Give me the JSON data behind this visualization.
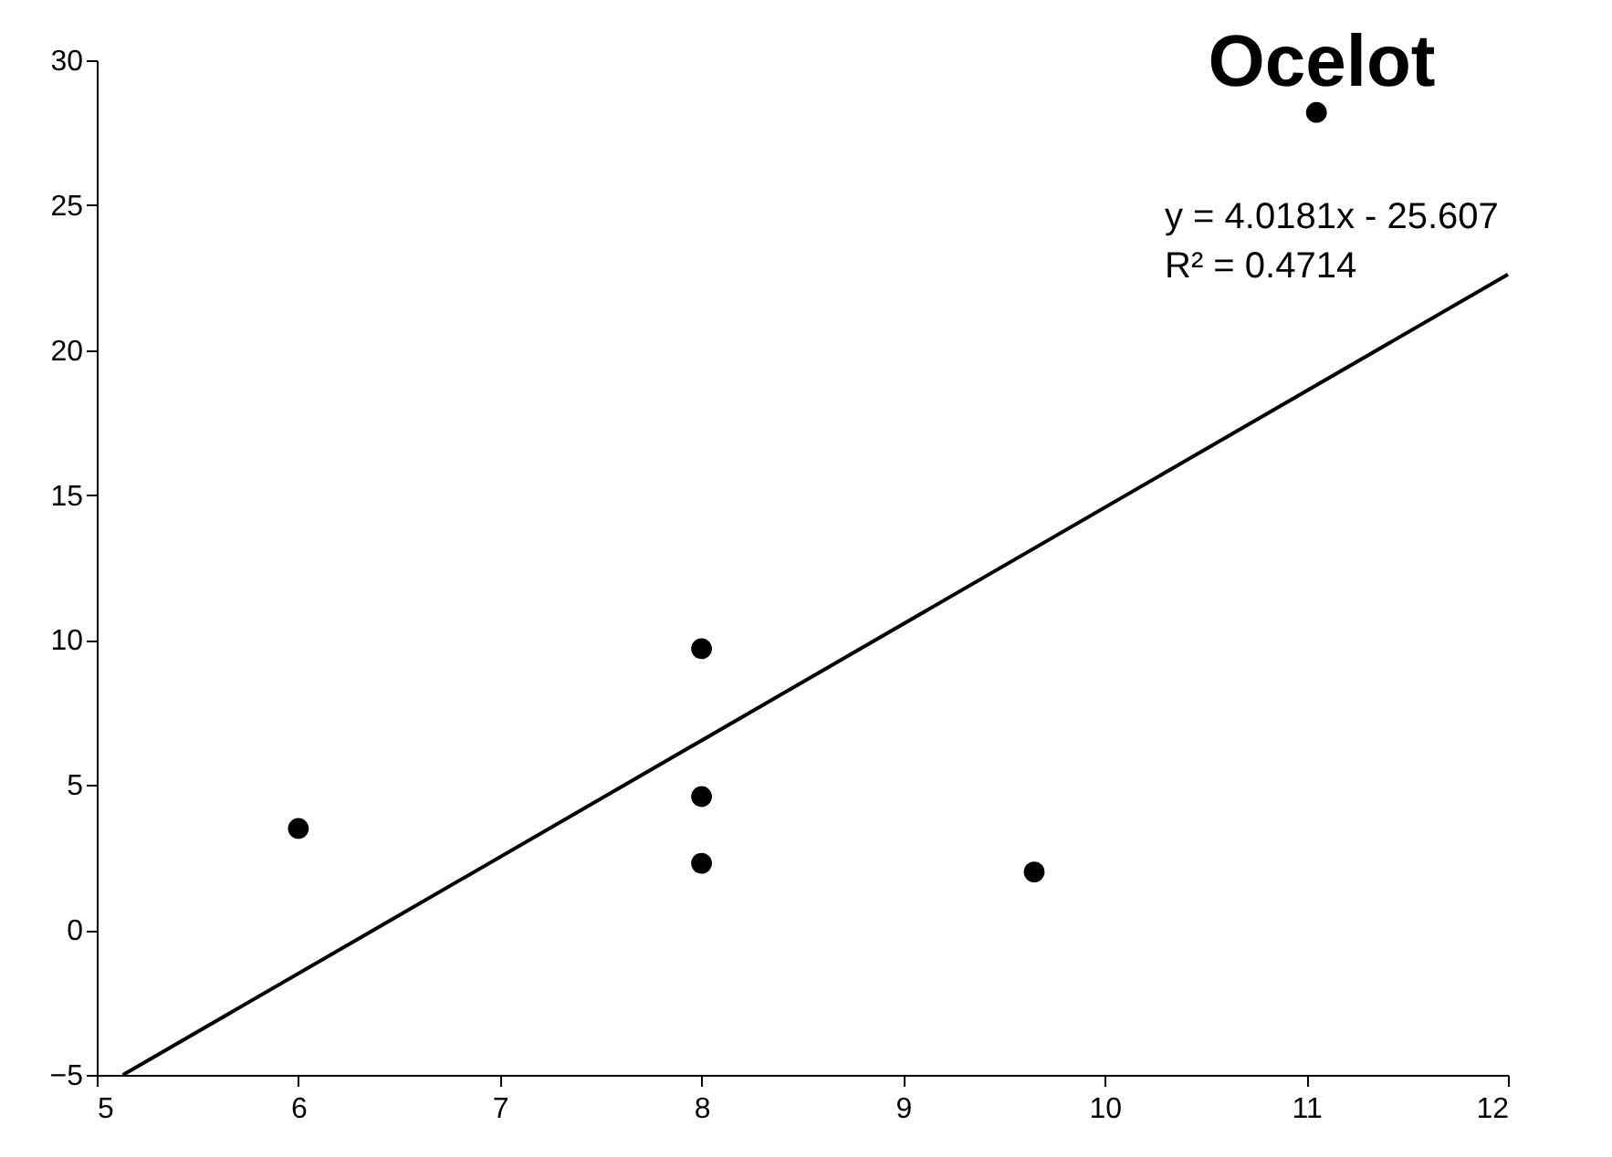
{
  "chart_data": {
    "type": "scatter",
    "title": "Ocelot",
    "annotations": [
      "y = 4.0181x - 25.607",
      "R² = 0.4714"
    ],
    "xlim": [
      5,
      12
    ],
    "xticks": [
      5,
      6,
      7,
      8,
      9,
      10,
      11,
      12
    ],
    "ylim": [
      -5,
      30
    ],
    "yticks": [
      -5,
      0,
      5,
      10,
      15,
      20,
      25,
      30
    ],
    "grid": false,
    "marker": "circle",
    "series": [
      {
        "color": "#000000",
        "x": [
          6,
          8,
          8,
          8,
          9.65,
          11.05
        ],
        "values": [
          3.5,
          9.7,
          4.6,
          2.3,
          2.0,
          28.2
        ]
      },
      {
        "type": "line",
        "marker": "none",
        "color": "#000000",
        "x": [
          5.13,
          12
        ],
        "values": [
          -5,
          22.61
        ]
      }
    ]
  }
}
